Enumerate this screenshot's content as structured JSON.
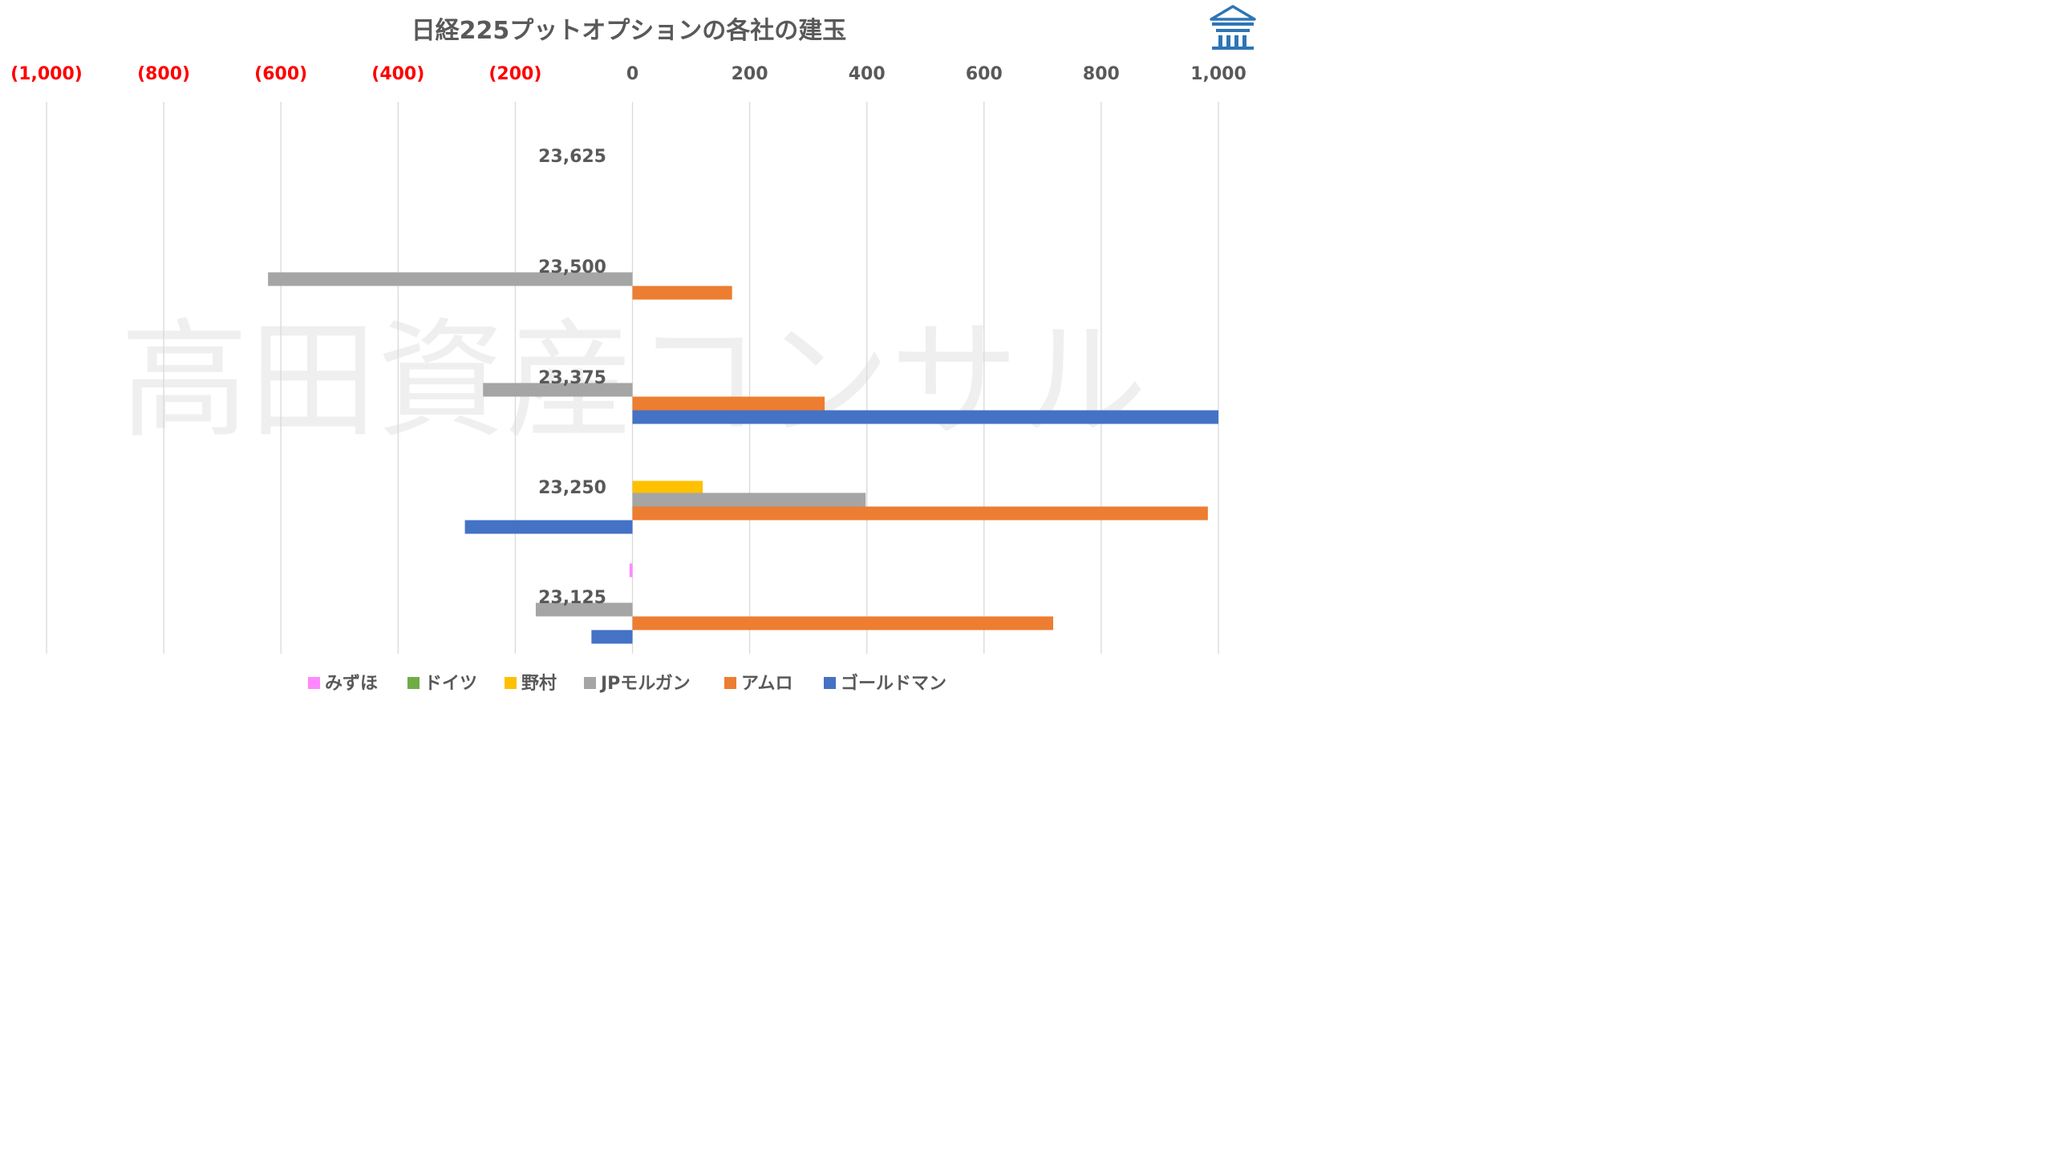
{
  "watermark": "高田資産コンサル",
  "logo": {
    "icon": "bank-building-icon",
    "color": "#2E75B6"
  },
  "colors": {
    "negative_tick": "#FF0000",
    "positive_tick": "#595959"
  },
  "chart_data": {
    "type": "bar",
    "orientation": "horizontal",
    "title": "日経225プットオプションの各社の建玉",
    "categories": [
      "23,625",
      "23,500",
      "23,375",
      "23,250",
      "23,125"
    ],
    "xlim": [
      -1000,
      1000
    ],
    "xticks": [
      {
        "value": -1000,
        "label": "(1,000)"
      },
      {
        "value": -800,
        "label": "(800)"
      },
      {
        "value": -600,
        "label": "(600)"
      },
      {
        "value": -400,
        "label": "(400)"
      },
      {
        "value": -200,
        "label": "(200)"
      },
      {
        "value": 0,
        "label": "0"
      },
      {
        "value": 200,
        "label": "200"
      },
      {
        "value": 400,
        "label": "400"
      },
      {
        "value": 600,
        "label": "600"
      },
      {
        "value": 800,
        "label": "800"
      },
      {
        "value": 1000,
        "label": "1,000"
      }
    ],
    "grid": true,
    "legend_position": "bottom",
    "series": [
      {
        "name": "みずほ",
        "color": "#FF88FF",
        "values": [
          0,
          0,
          0,
          0,
          -5
        ]
      },
      {
        "name": "ドイツ",
        "color": "#70AD47",
        "values": [
          0,
          0,
          0,
          0,
          0
        ]
      },
      {
        "name": "野村",
        "color": "#FFC000",
        "values": [
          0,
          0,
          0,
          120,
          0
        ]
      },
      {
        "name": "JPモルガン",
        "color": "#A5A5A5",
        "values": [
          0,
          -622,
          -255,
          398,
          -165
        ]
      },
      {
        "name": "アムロ",
        "color": "#ED7D31",
        "values": [
          0,
          170,
          328,
          982,
          718
        ]
      },
      {
        "name": "ゴールドマン",
        "color": "#4472C4",
        "values": [
          0,
          0,
          1000,
          -286,
          -70
        ]
      }
    ]
  }
}
